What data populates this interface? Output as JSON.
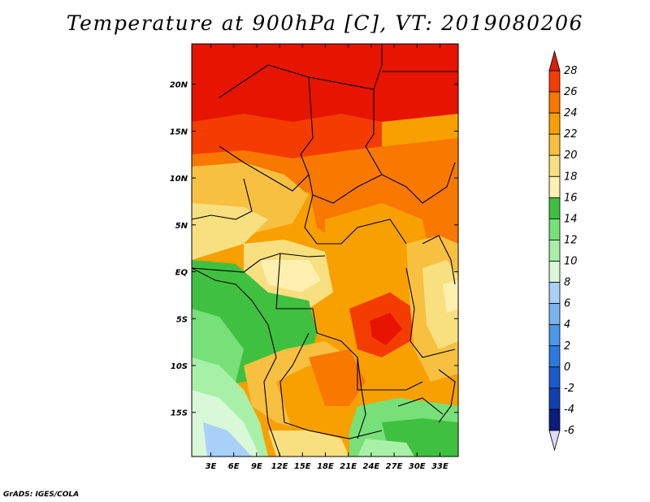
{
  "map": {
    "title": "Temperature at 900hPa [C], VT: 2019080206",
    "credit": "GrADS: IGES/COLA",
    "lat_ticks": [
      "20N",
      "15N",
      "10N",
      "5N",
      "EQ",
      "5S",
      "10S",
      "15S"
    ],
    "lat_values": [
      20,
      15,
      10,
      5,
      0,
      -5,
      -10,
      -15
    ],
    "lon_ticks": [
      "3E",
      "6E",
      "9E",
      "12E",
      "15E",
      "18E",
      "21E",
      "24E",
      "27E",
      "30E",
      "33E"
    ],
    "lon_values": [
      3,
      6,
      9,
      12,
      15,
      18,
      21,
      24,
      27,
      30,
      33
    ],
    "extent": {
      "lon": [
        0.5,
        35.4
      ],
      "lat": [
        -19.7,
        24.3
      ]
    },
    "colorbar": {
      "labels": [
        "28",
        "26",
        "24",
        "22",
        "20",
        "18",
        "16",
        "14",
        "12",
        "10",
        "8",
        "6",
        "4",
        "2",
        "0",
        "-2",
        "-4",
        "-6"
      ],
      "colors": [
        "#e61400",
        "#f43c00",
        "#f87800",
        "#f8a000",
        "#f8c040",
        "#f8e080",
        "#fff0b0",
        "#40c040",
        "#78e078",
        "#a8f0a8",
        "#d8f8d8",
        "#a8d0f8",
        "#78b4f0",
        "#4c98ea",
        "#2a7ae0",
        "#1a5ad0",
        "#1040b0",
        "#0a1c7c",
        "#000060"
      ],
      "over_color": "#dc1e0a",
      "under_color": "#dcdcf8"
    }
  }
}
